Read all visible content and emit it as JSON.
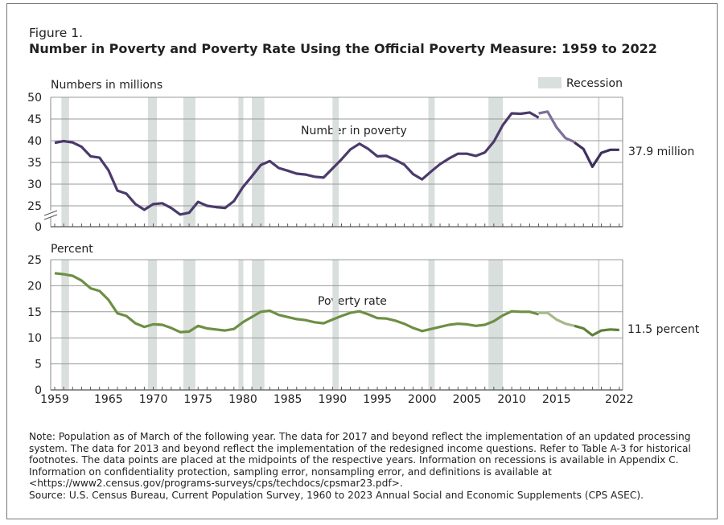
{
  "figure_label": "Figure 1.",
  "title": "Number in Poverty and Poverty Rate Using the Official Poverty Measure: 1959 to 2022",
  "title_color": "#34466f",
  "legend": {
    "recession": "Recession",
    "recession_color": "#d9dfdc",
    "placement": "top-right"
  },
  "recessions": [
    [
      1960.25,
      1961.1
    ],
    [
      1969.9,
      1970.9
    ],
    [
      1973.85,
      1975.2
    ],
    [
      1980.0,
      1980.55
    ],
    [
      1981.5,
      1982.9
    ],
    [
      1990.5,
      1991.2
    ],
    [
      2001.2,
      2001.9
    ],
    [
      2007.9,
      2009.5
    ],
    [
      2020.1,
      2020.3
    ]
  ],
  "chart_data": [
    {
      "type": "line",
      "ylabel": "Numbers in millions",
      "series_label": "Number in poverty",
      "end_label": "37.9 million",
      "yticks": [
        "50",
        "45",
        "40",
        "35",
        "30",
        "25",
        "0"
      ],
      "ylim": [
        0,
        50
      ],
      "axis_break": true,
      "grid": true,
      "colors": [
        "#4b3a6b",
        "#7e6f98",
        "#3f2f5e"
      ],
      "segments": [
        {
          "x": [
            1959,
            1960,
            1961,
            1962,
            1963,
            1964,
            1965,
            1966,
            1967,
            1968,
            1969,
            1970,
            1971,
            1972,
            1973,
            1974,
            1975,
            1976,
            1977,
            1978,
            1979,
            1980,
            1981,
            1982,
            1983,
            1984,
            1985,
            1986,
            1987,
            1988,
            1989,
            1990,
            1991,
            1992,
            1993,
            1994,
            1995,
            1996,
            1997,
            1998,
            1999,
            2000,
            2001,
            2002,
            2003,
            2004,
            2005,
            2006,
            2007,
            2008,
            2009,
            2010,
            2011,
            2012,
            2013
          ],
          "y": [
            39.5,
            39.9,
            39.6,
            38.6,
            36.4,
            36.1,
            33.2,
            28.5,
            27.8,
            25.4,
            24.1,
            25.4,
            25.6,
            24.5,
            23.0,
            23.4,
            25.9,
            25.0,
            24.7,
            24.5,
            26.1,
            29.3,
            31.8,
            34.4,
            35.3,
            33.7,
            33.1,
            32.4,
            32.2,
            31.7,
            31.5,
            33.6,
            35.7,
            38.0,
            39.3,
            38.1,
            36.4,
            36.5,
            35.6,
            34.5,
            32.3,
            31.1,
            32.9,
            34.6,
            35.9,
            37.0,
            37.0,
            36.5,
            37.3,
            39.8,
            43.6,
            46.3,
            46.2,
            46.5,
            45.3
          ]
        },
        {
          "x": [
            2013,
            2014,
            2015,
            2016,
            2017
          ],
          "y": [
            46.3,
            46.7,
            43.1,
            40.6,
            39.7
          ]
        },
        {
          "x": [
            2017,
            2018,
            2019,
            2020,
            2021,
            2022
          ],
          "y": [
            39.6,
            38.1,
            34.0,
            37.2,
            37.9,
            37.9
          ]
        }
      ]
    },
    {
      "type": "line",
      "ylabel": "Percent",
      "series_label": "Poverty rate",
      "end_label": "11.5 percent",
      "yticks": [
        "25",
        "20",
        "15",
        "10",
        "5",
        "0"
      ],
      "ylim": [
        0,
        25
      ],
      "grid": true,
      "colors": [
        "#6e8f44",
        "#a6b98a",
        "#5f8038"
      ],
      "segments": [
        {
          "x": [
            1959,
            1960,
            1961,
            1962,
            1963,
            1964,
            1965,
            1966,
            1967,
            1968,
            1969,
            1970,
            1971,
            1972,
            1973,
            1974,
            1975,
            1976,
            1977,
            1978,
            1979,
            1980,
            1981,
            1982,
            1983,
            1984,
            1985,
            1986,
            1987,
            1988,
            1989,
            1990,
            1991,
            1992,
            1993,
            1994,
            1995,
            1996,
            1997,
            1998,
            1999,
            2000,
            2001,
            2002,
            2003,
            2004,
            2005,
            2006,
            2007,
            2008,
            2009,
            2010,
            2011,
            2012,
            2013
          ],
          "y": [
            22.4,
            22.2,
            21.9,
            21.0,
            19.5,
            19.0,
            17.3,
            14.7,
            14.2,
            12.8,
            12.1,
            12.6,
            12.5,
            11.9,
            11.1,
            11.2,
            12.3,
            11.8,
            11.6,
            11.4,
            11.7,
            13.0,
            14.0,
            15.0,
            15.2,
            14.4,
            14.0,
            13.6,
            13.4,
            13.0,
            12.8,
            13.5,
            14.2,
            14.8,
            15.1,
            14.5,
            13.8,
            13.7,
            13.3,
            12.7,
            11.9,
            11.3,
            11.7,
            12.1,
            12.5,
            12.7,
            12.6,
            12.3,
            12.5,
            13.2,
            14.3,
            15.1,
            15.0,
            15.0,
            14.5
          ]
        },
        {
          "x": [
            2013,
            2014,
            2015,
            2016,
            2017
          ],
          "y": [
            14.8,
            14.8,
            13.5,
            12.7,
            12.3
          ]
        },
        {
          "x": [
            2017,
            2018,
            2019,
            2020,
            2021,
            2022
          ],
          "y": [
            12.3,
            11.8,
            10.5,
            11.4,
            11.6,
            11.5
          ]
        }
      ],
      "xticks": [
        "1959",
        "1965",
        "1970",
        "1975",
        "1980",
        "1985",
        "1990",
        "1995",
        "2000",
        "2005",
        "2010",
        "2015",
        "2022"
      ],
      "xlim": [
        1959,
        2022
      ]
    }
  ],
  "notes": [
    "Note: Population as of March of the following year. The data for 2017 and beyond reflect the implementation of an updated processing",
    "system. The data for 2013 and beyond reflect the implementation of the redesigned income questions. Refer to Table A-3 for historical",
    "footnotes. The data points are placed at the midpoints of the respective years. Information on recessions is available in Appendix C.",
    "Information on confidentiality protection, sampling error, nonsampling error, and definitions is available at",
    "<https://www2.census.gov/programs-surveys/cps/techdocs/cpsmar23.pdf>.",
    "Source: U.S. Census Bureau, Current Population Survey, 1960 to 2023 Annual Social and Economic Supplements (CPS ASEC)."
  ]
}
